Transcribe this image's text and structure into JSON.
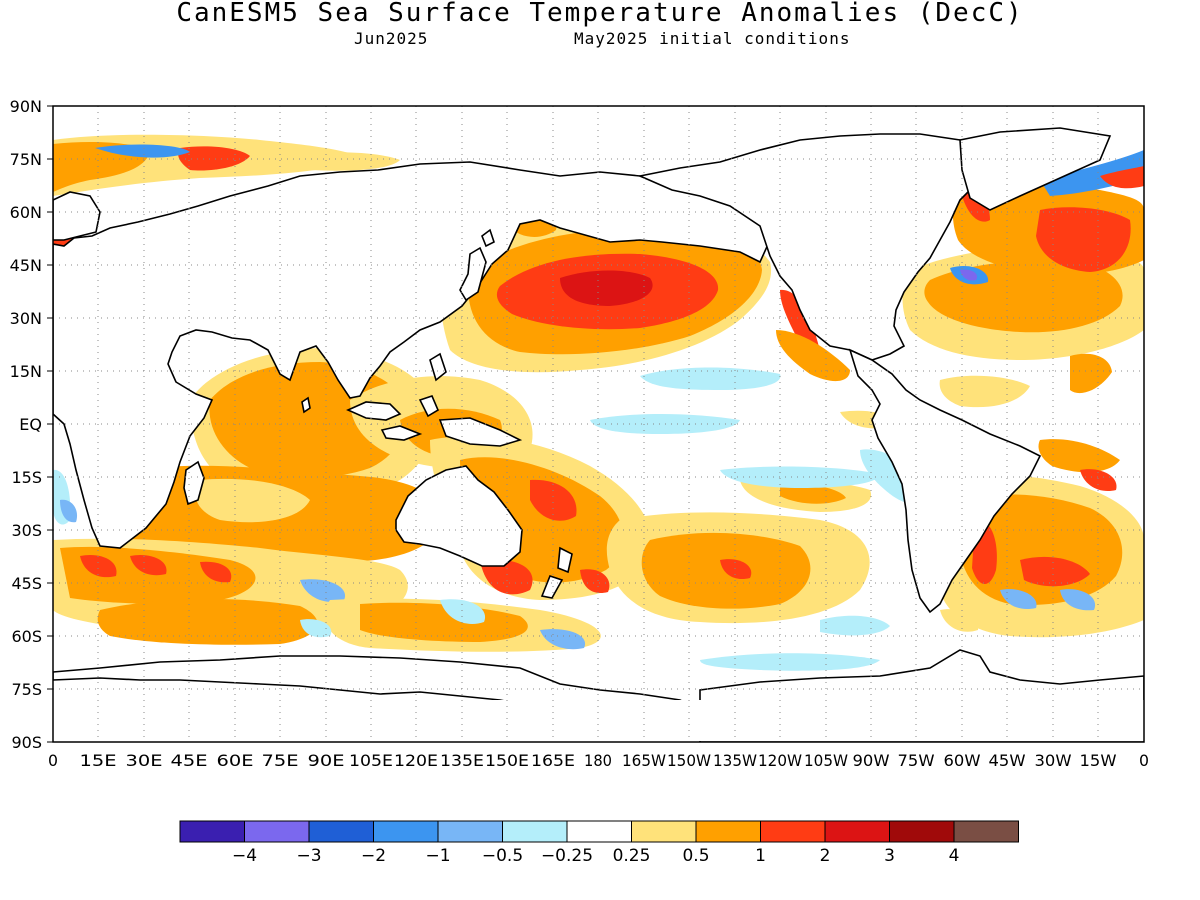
{
  "title": "CanESM5 Sea Surface Temperature Anomalies (DecC)",
  "subtitle_left": "Jun2025",
  "subtitle_right": "May2025 initial conditions",
  "map": {
    "lat_labels": [
      "90N",
      "75N",
      "60N",
      "45N",
      "30N",
      "15N",
      "EQ",
      "15S",
      "30S",
      "45S",
      "60S",
      "75S",
      "90S"
    ],
    "lon_labels": [
      "0",
      "15E",
      "30E",
      "45E",
      "60E",
      "75E",
      "90E",
      "105E",
      "120E",
      "135E",
      "150E",
      "165E",
      "180",
      "165W",
      "150W",
      "135W",
      "120W",
      "105W",
      "90W",
      "75W",
      "60W",
      "45W",
      "30W",
      "15W",
      "0"
    ],
    "grid": "dotted"
  },
  "colorbar": {
    "colors": [
      "#3a1fb0",
      "#7b68ee",
      "#1f5fd6",
      "#3c95f0",
      "#78b6f6",
      "#b4eefa",
      "#ffffff",
      "#ffe27a",
      "#ffa000",
      "#ff3c14",
      "#dc1414",
      "#a00a0a",
      "#7a4e44"
    ],
    "labels": [
      "-4",
      "-3",
      "-2",
      "-1",
      "-0.5",
      "-0.25",
      "0.25",
      "0.5",
      "1",
      "2",
      "3",
      "4"
    ],
    "colors_meaning": {
      "land": "#ffffff",
      "coast": "#000000",
      "neutral": "#ffffff",
      "weak_warm": "#ffe27a",
      "warm": "#ffa000",
      "hot": "#ff3c14",
      "very_hot": "#dc1414",
      "weak_cold": "#b4eefa",
      "cold": "#78b6f6"
    }
  }
}
